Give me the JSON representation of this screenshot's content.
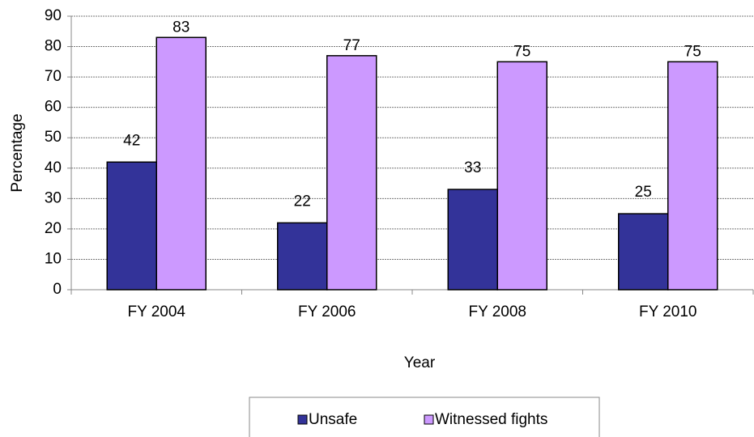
{
  "chart_data": {
    "type": "bar",
    "categories": [
      "FY 2004",
      "FY 2006",
      "FY 2008",
      "FY 2010"
    ],
    "series": [
      {
        "name": "Unsafe",
        "color": "#333399",
        "values": [
          42,
          22,
          33,
          25
        ]
      },
      {
        "name": "Witnessed fights",
        "color": "#cc99ff",
        "values": [
          83,
          77,
          75,
          75
        ]
      }
    ],
    "xlabel": "Year",
    "ylabel": "Percentage",
    "ylim": [
      0,
      90
    ],
    "yticks": [
      0,
      10,
      20,
      30,
      40,
      50,
      60,
      70,
      80,
      90
    ],
    "grid": true,
    "legend": "bottom"
  }
}
